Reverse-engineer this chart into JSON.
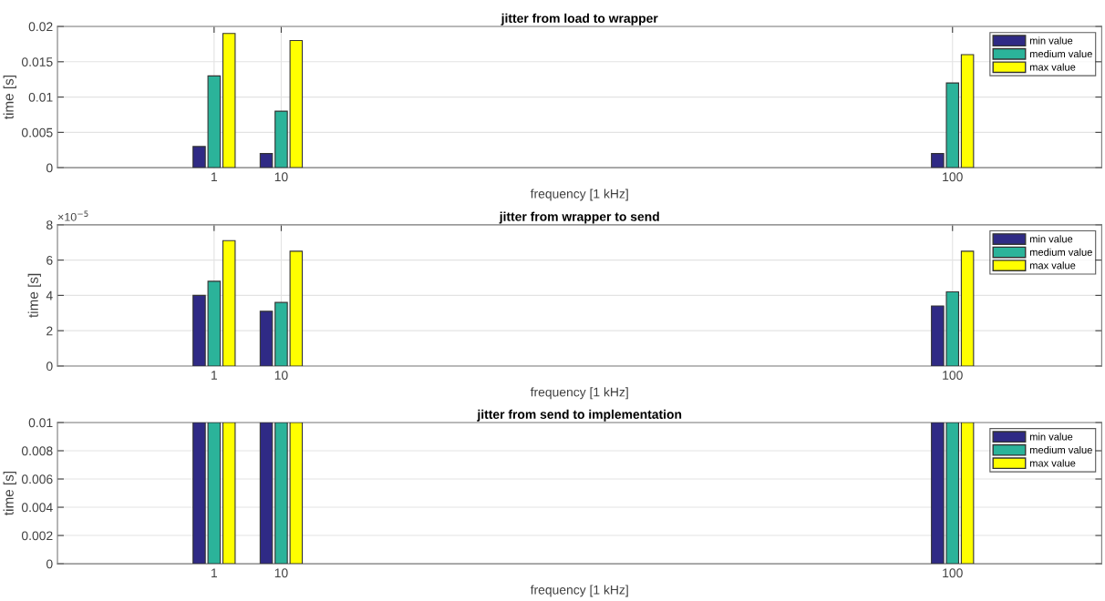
{
  "chart_data": [
    {
      "type": "bar",
      "title": "jitter from load to wrapper",
      "xlabel": "frequency [1 kHz]",
      "ylabel": "time [s]",
      "x": [
        1,
        10,
        100
      ],
      "xlim": [
        -20,
        120
      ],
      "xticks": [
        1,
        10,
        100
      ],
      "ylim": [
        0,
        0.02
      ],
      "yticks": [
        0,
        0.005,
        0.01,
        0.015,
        0.02
      ],
      "grid": true,
      "legend": "top right",
      "series": [
        {
          "name": "min value",
          "color": "#2f2a85",
          "values": [
            0.003,
            0.002,
            0.002
          ]
        },
        {
          "name": "medium value",
          "color": "#2bb39a",
          "values": [
            0.013,
            0.008,
            0.012
          ]
        },
        {
          "name": "max value",
          "color": "#ffff00",
          "values": [
            0.019,
            0.018,
            0.016
          ]
        }
      ]
    },
    {
      "type": "bar",
      "title": "jitter from wrapper to send",
      "xlabel": "frequency [1 kHz]",
      "ylabel": "time [s]",
      "x": [
        1,
        10,
        100
      ],
      "xlim": [
        -20,
        120
      ],
      "xticks": [
        1,
        10,
        100
      ],
      "ylim": [
        0,
        8
      ],
      "yticks": [
        0,
        2,
        4,
        6,
        8
      ],
      "grid": true,
      "legend": "top right",
      "annotations": [
        "×10$^{−5}$"
      ],
      "series": [
        {
          "name": "min value",
          "color": "#2f2a85",
          "values": [
            4.0,
            3.1,
            3.4
          ]
        },
        {
          "name": "medium value",
          "color": "#2bb39a",
          "values": [
            4.8,
            3.6,
            4.2
          ]
        },
        {
          "name": "max value",
          "color": "#ffff00",
          "values": [
            7.1,
            6.5,
            6.5
          ]
        }
      ]
    },
    {
      "type": "bar",
      "title": "jitter from send to implementation",
      "xlabel": "frequency [1 kHz]",
      "ylabel": "time [s]",
      "x": [
        1,
        10,
        100
      ],
      "xlim": [
        -20,
        120
      ],
      "xticks": [
        1,
        10,
        100
      ],
      "ylim": [
        0,
        0.01
      ],
      "yticks": [
        0,
        0.002,
        0.004,
        0.006,
        0.008,
        0.01
      ],
      "grid": true,
      "legend": "top right",
      "series": [
        {
          "name": "min value",
          "color": "#2f2a85",
          "values": [
            0.01,
            0.01,
            0.01
          ]
        },
        {
          "name": "medium value",
          "color": "#2bb39a",
          "values": [
            0.01,
            0.01,
            0.01
          ]
        },
        {
          "name": "max value",
          "color": "#ffff00",
          "values": [
            0.01,
            0.01,
            0.01
          ]
        }
      ]
    }
  ]
}
